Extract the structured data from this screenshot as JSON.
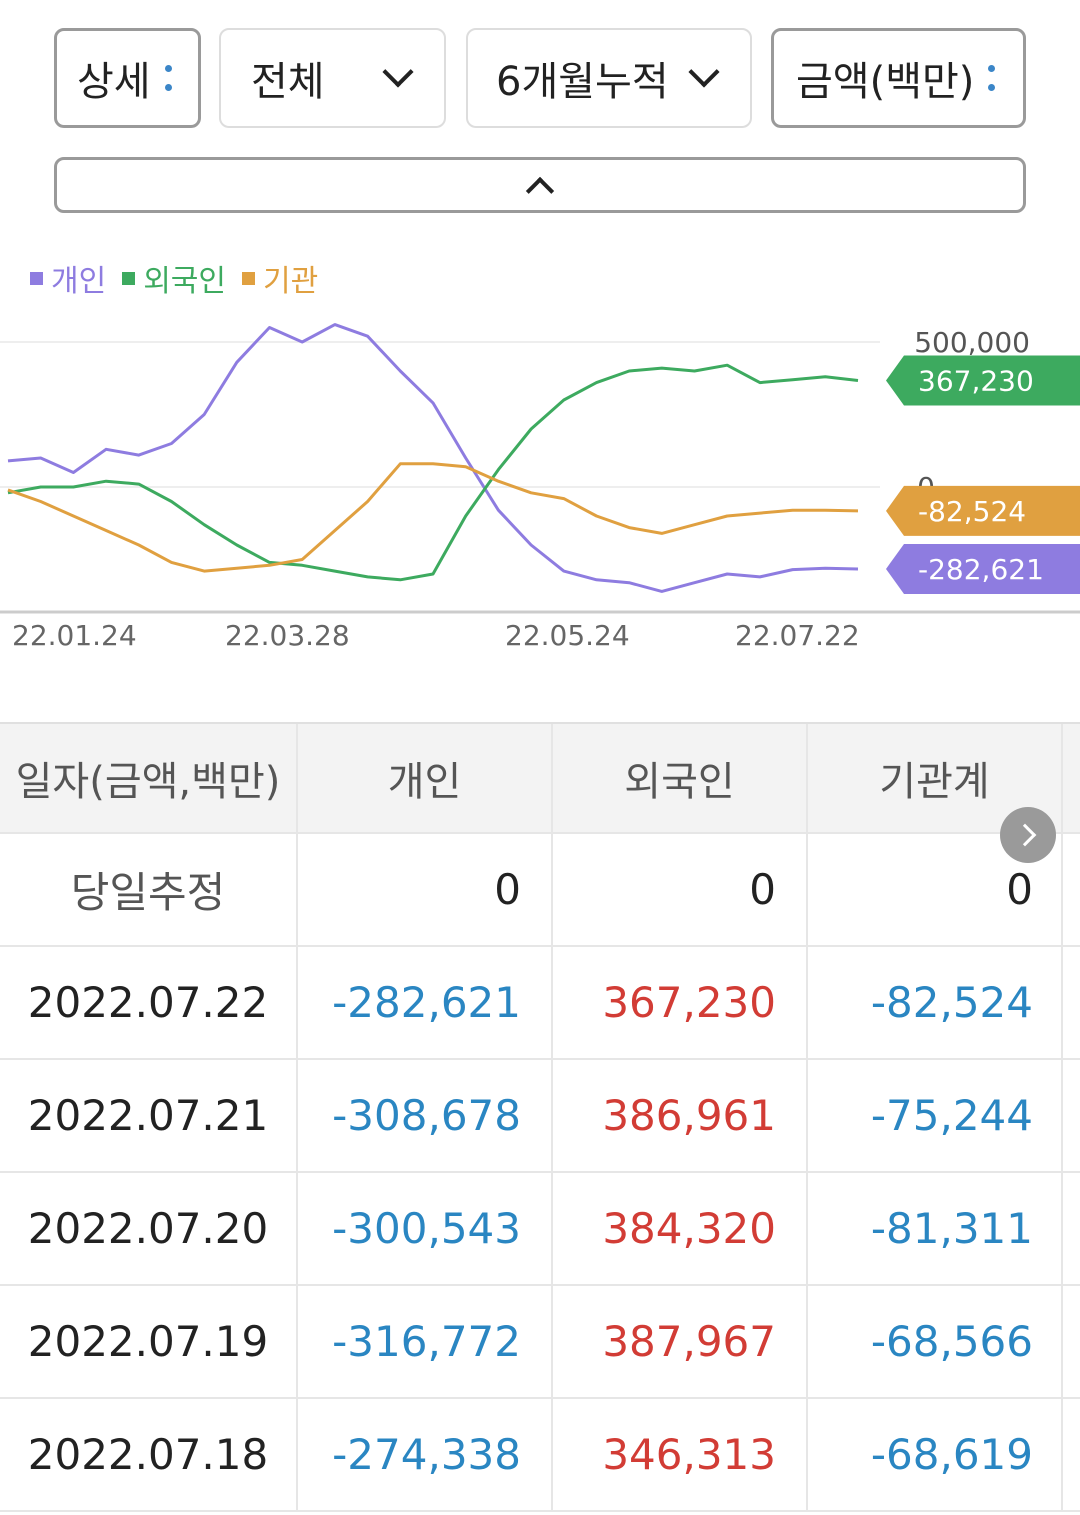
{
  "filters": {
    "view": "상세",
    "scope": "전체",
    "period": "6개월누적",
    "unit": "금액(백만)"
  },
  "chart_data": {
    "type": "line",
    "legend_placement": "top-left",
    "grid": true,
    "y_ticks": [
      "500,000",
      "0"
    ],
    "x_ticks": [
      "22.01.24",
      "22.03.28",
      "22.05.24",
      "22.07.22"
    ],
    "ylim": [
      -390000,
      560000
    ],
    "series": [
      {
        "name": "개인",
        "color": "#8e7ce0",
        "last_label": "-282,621",
        "values": [
          90000,
          100000,
          50000,
          130000,
          110000,
          150000,
          250000,
          430000,
          550000,
          500000,
          560000,
          520000,
          400000,
          290000,
          100000,
          -80000,
          -200000,
          -290000,
          -320000,
          -330000,
          -360000,
          -330000,
          -300000,
          -310000,
          -285000,
          -280000,
          -282621
        ]
      },
      {
        "name": "외국인",
        "color": "#3daa5f",
        "last_label": "367,230",
        "values": [
          -20000,
          0,
          0,
          20000,
          10000,
          -50000,
          -130000,
          -200000,
          -260000,
          -270000,
          -290000,
          -310000,
          -320000,
          -300000,
          -100000,
          60000,
          200000,
          300000,
          360000,
          400000,
          410000,
          400000,
          420000,
          360000,
          370000,
          380000,
          367230
        ]
      },
      {
        "name": "기관",
        "color": "#e0a040",
        "last_label": "-82,524",
        "values": [
          -10000,
          -50000,
          -100000,
          -150000,
          -200000,
          -260000,
          -290000,
          -280000,
          -270000,
          -250000,
          -150000,
          -50000,
          80000,
          80000,
          70000,
          20000,
          -20000,
          -40000,
          -100000,
          -140000,
          -160000,
          -130000,
          -100000,
          -90000,
          -80000,
          -80000,
          -82524
        ]
      }
    ]
  },
  "table": {
    "headers": [
      "일자(금액,백만)",
      "개인",
      "외국인",
      "기관계"
    ],
    "rows": [
      {
        "date": "당일추정",
        "individual": "0",
        "foreign": "0",
        "institution": "0"
      },
      {
        "date": "2022.07.22",
        "individual": "-282,621",
        "foreign": "367,230",
        "institution": "-82,524"
      },
      {
        "date": "2022.07.21",
        "individual": "-308,678",
        "foreign": "386,961",
        "institution": "-75,244"
      },
      {
        "date": "2022.07.20",
        "individual": "-300,543",
        "foreign": "384,320",
        "institution": "-81,311"
      },
      {
        "date": "2022.07.19",
        "individual": "-316,772",
        "foreign": "387,967",
        "institution": "-68,566"
      },
      {
        "date": "2022.07.18",
        "individual": "-274,338",
        "foreign": "346,313",
        "institution": "-68,619"
      }
    ]
  },
  "colors": {
    "negative": "#2a86c2",
    "positive": "#d23c35"
  },
  "icons": {
    "more": "vertical-dots-icon",
    "dropdown": "chevron-down-icon",
    "collapse": "chevron-up-icon",
    "next": "chevron-right-icon"
  }
}
